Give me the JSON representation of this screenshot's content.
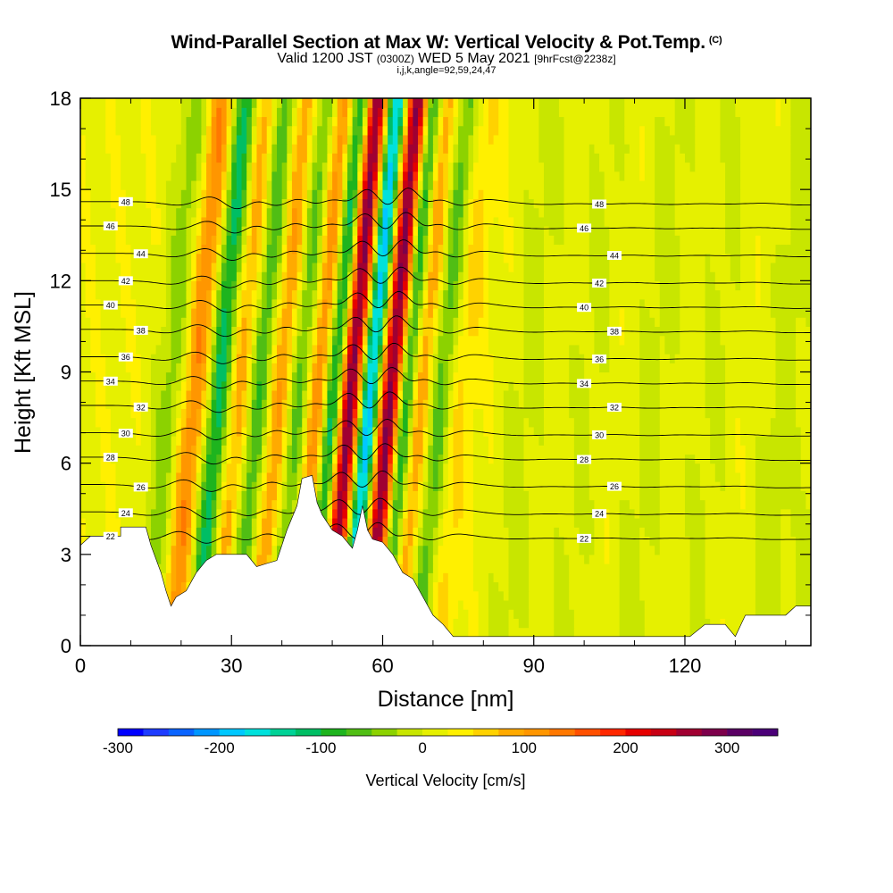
{
  "title": {
    "main": "Wind-Parallel Section at Max W: Vertical Velocity & Pot.Temp.",
    "copyright": "(C)",
    "valid_prefix": "Valid 1200 JST",
    "valid_utc": "(0300Z)",
    "valid_date": "WED 5 May 2021",
    "forecast": "[9hrFcst@2238z]",
    "coords": "i,j,k,angle=92,59,24,47"
  },
  "chart_data": {
    "type": "heatmap",
    "xlabel": "Distance [nm]",
    "ylabel": "Height [Kft MSL]",
    "xlim": [
      0,
      145
    ],
    "ylim": [
      0,
      18
    ],
    "x_ticks": [
      0,
      30,
      60,
      90,
      120
    ],
    "y_ticks": [
      0,
      3,
      6,
      9,
      12,
      15,
      18
    ],
    "colorbar": {
      "label": "Vertical Velocity [cm/s]",
      "min": -300,
      "max": 350,
      "step": 25,
      "tick_values": [
        -300,
        -200,
        -100,
        0,
        100,
        200,
        300
      ],
      "colors": [
        "#0000ff",
        "#1e3cff",
        "#0a64ff",
        "#0096ff",
        "#00c8ff",
        "#00e1dc",
        "#00d296",
        "#00be64",
        "#1eb41e",
        "#50be14",
        "#8cd200",
        "#c8e600",
        "#e6f000",
        "#fff000",
        "#ffd200",
        "#ffaa00",
        "#ff9600",
        "#ff7800",
        "#ff5000",
        "#ff2800",
        "#e60000",
        "#c80014",
        "#a00032",
        "#7d004b",
        "#5a0064",
        "#4b0078"
      ]
    },
    "ridges": [
      {
        "x": 14,
        "w": 3.5,
        "amp": -70
      },
      {
        "x": 18,
        "w": 3.0,
        "amp": 120
      },
      {
        "x": 23,
        "w": 2.5,
        "amp": -140
      },
      {
        "x": 27,
        "w": 2.5,
        "amp": 80
      },
      {
        "x": 31,
        "w": 2.5,
        "amp": -100
      },
      {
        "x": 35,
        "w": 2.5,
        "amp": 90
      },
      {
        "x": 39,
        "w": 2.5,
        "amp": -90
      },
      {
        "x": 43,
        "w": 2.5,
        "amp": 140
      },
      {
        "x": 46,
        "w": 2.5,
        "amp": -220
      },
      {
        "x": 49,
        "w": 2.5,
        "amp": 330
      },
      {
        "x": 53,
        "w": 2.5,
        "amp": -250
      },
      {
        "x": 57,
        "w": 2.5,
        "amp": 300
      },
      {
        "x": 60,
        "w": 2.0,
        "amp": -180
      },
      {
        "x": 63,
        "w": 2.5,
        "amp": 90
      },
      {
        "x": 67,
        "w": 2.5,
        "amp": -90
      },
      {
        "x": 71,
        "w": 3.0,
        "amp": 40
      },
      {
        "x": 84,
        "w": 4.0,
        "amp": -30
      },
      {
        "x": 96,
        "w": 4.0,
        "amp": -25
      },
      {
        "x": 109,
        "w": 4.0,
        "amp": -30
      },
      {
        "x": 121,
        "w": 4.0,
        "amp": -25
      },
      {
        "x": 135,
        "w": 4.0,
        "amp": -35
      },
      {
        "x": 143,
        "w": 3.0,
        "amp": -25
      }
    ],
    "terrain": [
      [
        0,
        3.3
      ],
      [
        2,
        3.6
      ],
      [
        8,
        3.6
      ],
      [
        8,
        3.9
      ],
      [
        13,
        3.9
      ],
      [
        14,
        3.3
      ],
      [
        16,
        2.4
      ],
      [
        17,
        1.8
      ],
      [
        18,
        1.3
      ],
      [
        19,
        1.6
      ],
      [
        21,
        1.8
      ],
      [
        23,
        2.4
      ],
      [
        25,
        2.8
      ],
      [
        27,
        3.0
      ],
      [
        33,
        3.0
      ],
      [
        35,
        2.6
      ],
      [
        37,
        2.7
      ],
      [
        39,
        2.8
      ],
      [
        41,
        3.8
      ],
      [
        43,
        4.6
      ],
      [
        44,
        5.5
      ],
      [
        46,
        5.6
      ],
      [
        47,
        4.7
      ],
      [
        48,
        4.3
      ],
      [
        50,
        3.8
      ],
      [
        52,
        3.6
      ],
      [
        54,
        3.2
      ],
      [
        55,
        3.8
      ],
      [
        56,
        4.6
      ],
      [
        57,
        3.8
      ],
      [
        58,
        3.5
      ],
      [
        60,
        3.4
      ],
      [
        62,
        3.0
      ],
      [
        64,
        2.4
      ],
      [
        66,
        2.2
      ],
      [
        68,
        1.6
      ],
      [
        70,
        1.0
      ],
      [
        72,
        0.7
      ],
      [
        74,
        0.3
      ],
      [
        90,
        0.3
      ],
      [
        106,
        0.3
      ],
      [
        111,
        0.3
      ],
      [
        117,
        0.3
      ],
      [
        121,
        0.3
      ],
      [
        124,
        0.7
      ],
      [
        128,
        0.7
      ],
      [
        130,
        0.3
      ],
      [
        132,
        1.0
      ],
      [
        140,
        1.0
      ],
      [
        142,
        1.3
      ],
      [
        145,
        1.3
      ]
    ],
    "isentropes": [
      {
        "label": "22",
        "h": 3.6
      },
      {
        "label": "24",
        "h": 4.4
      },
      {
        "label": "26",
        "h": 5.3
      },
      {
        "label": "28",
        "h": 6.2
      },
      {
        "label": "30",
        "h": 7.0
      },
      {
        "label": "32",
        "h": 7.9
      },
      {
        "label": "34",
        "h": 8.7
      },
      {
        "label": "36",
        "h": 9.5
      },
      {
        "label": "38",
        "h": 10.4
      },
      {
        "label": "40",
        "h": 11.2
      },
      {
        "label": "42",
        "h": 12.0
      },
      {
        "label": "44",
        "h": 12.9
      },
      {
        "label": "46",
        "h": 13.8
      },
      {
        "label": "48",
        "h": 14.6
      }
    ]
  }
}
